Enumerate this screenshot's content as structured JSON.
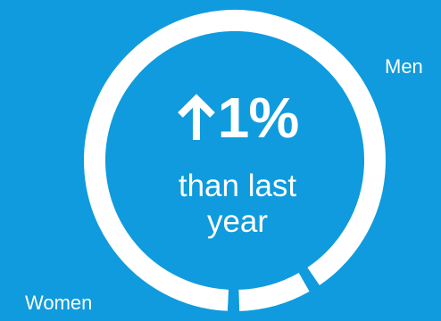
{
  "theme": {
    "background": "#0f9bdd",
    "ring_color": "#ffffff"
  },
  "center": {
    "icon": "arrow-up-icon",
    "value": "1%",
    "caption_line1": "than last",
    "caption_line2": "year"
  },
  "chart_data": {
    "type": "pie",
    "style": "donut",
    "title": "",
    "slices": [
      {
        "label": "Men",
        "share": 0.91
      },
      {
        "label": "Women",
        "share": 0.09
      }
    ]
  }
}
